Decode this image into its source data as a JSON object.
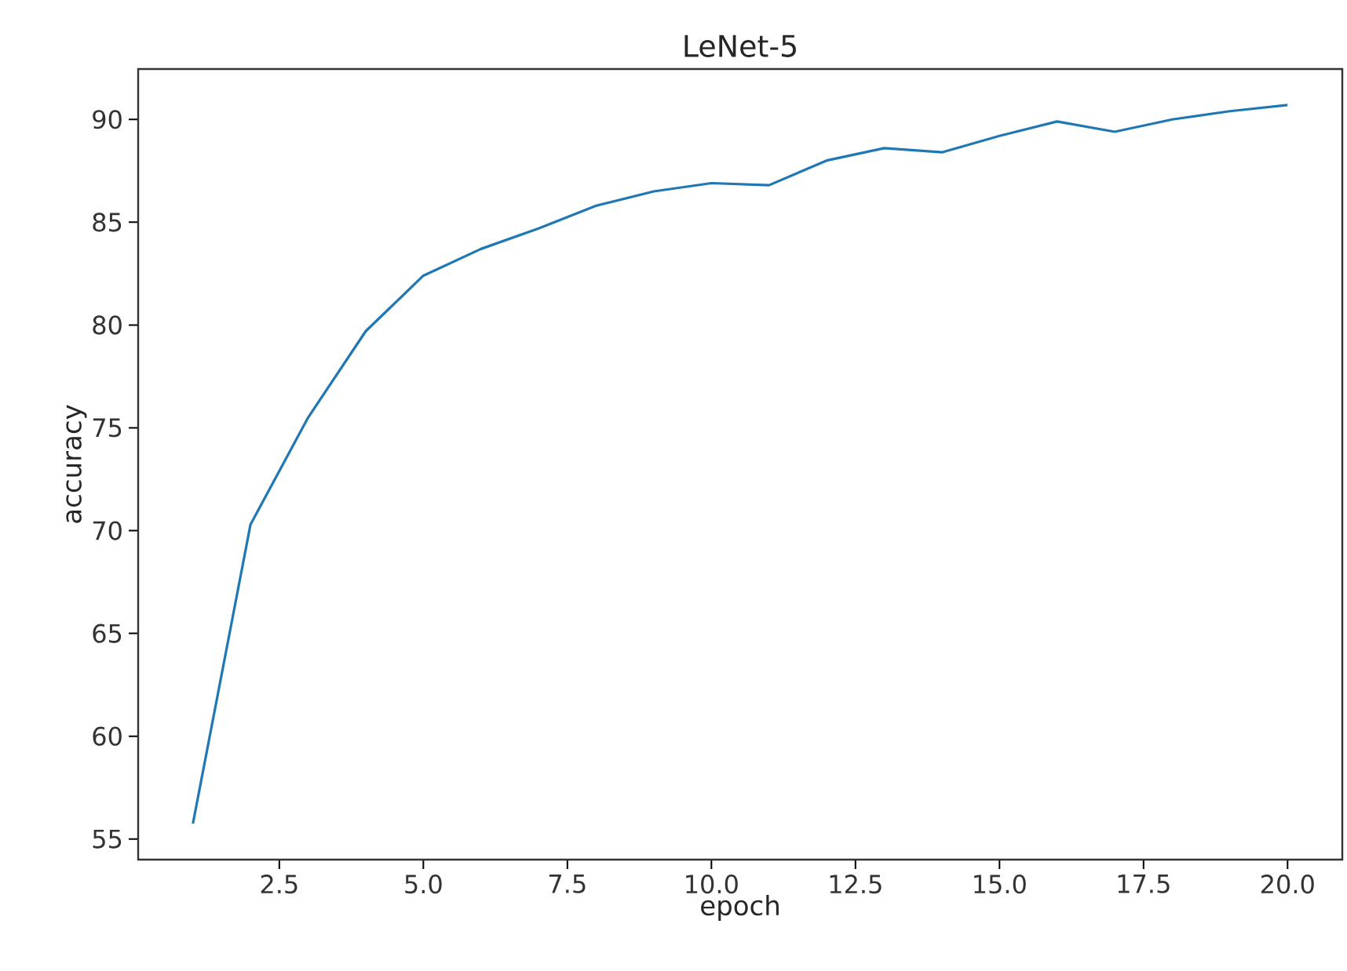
{
  "chart_data": {
    "type": "line",
    "title": "LeNet-5",
    "xlabel": "epoch",
    "ylabel": "accuracy",
    "x": [
      1,
      2,
      3,
      4,
      5,
      6,
      7,
      8,
      9,
      10,
      11,
      12,
      13,
      14,
      15,
      16,
      17,
      18,
      19,
      20
    ],
    "series": [
      {
        "color": "#1f77b4",
        "values": [
          55.75,
          70.3,
          75.5,
          79.7,
          82.4,
          83.7,
          84.7,
          85.8,
          86.5,
          86.9,
          86.8,
          88.0,
          88.6,
          88.4,
          89.2,
          89.9,
          89.4,
          90.0,
          90.4,
          90.7
        ]
      }
    ],
    "xlim": [
      0.05,
      20.95
    ],
    "ylim": [
      54.0,
      92.45
    ],
    "xticks": [
      {
        "value": 2.5,
        "label": "2.5"
      },
      {
        "value": 5,
        "label": "5.0"
      },
      {
        "value": 7.5,
        "label": "7.5"
      },
      {
        "value": 10,
        "label": "10.0"
      },
      {
        "value": 12.5,
        "label": "12.5"
      },
      {
        "value": 15,
        "label": "15.0"
      },
      {
        "value": 17.5,
        "label": "17.5"
      },
      {
        "value": 20,
        "label": "20.0"
      }
    ],
    "yticks": [
      55,
      60,
      65,
      70,
      75,
      80,
      85,
      90
    ]
  }
}
